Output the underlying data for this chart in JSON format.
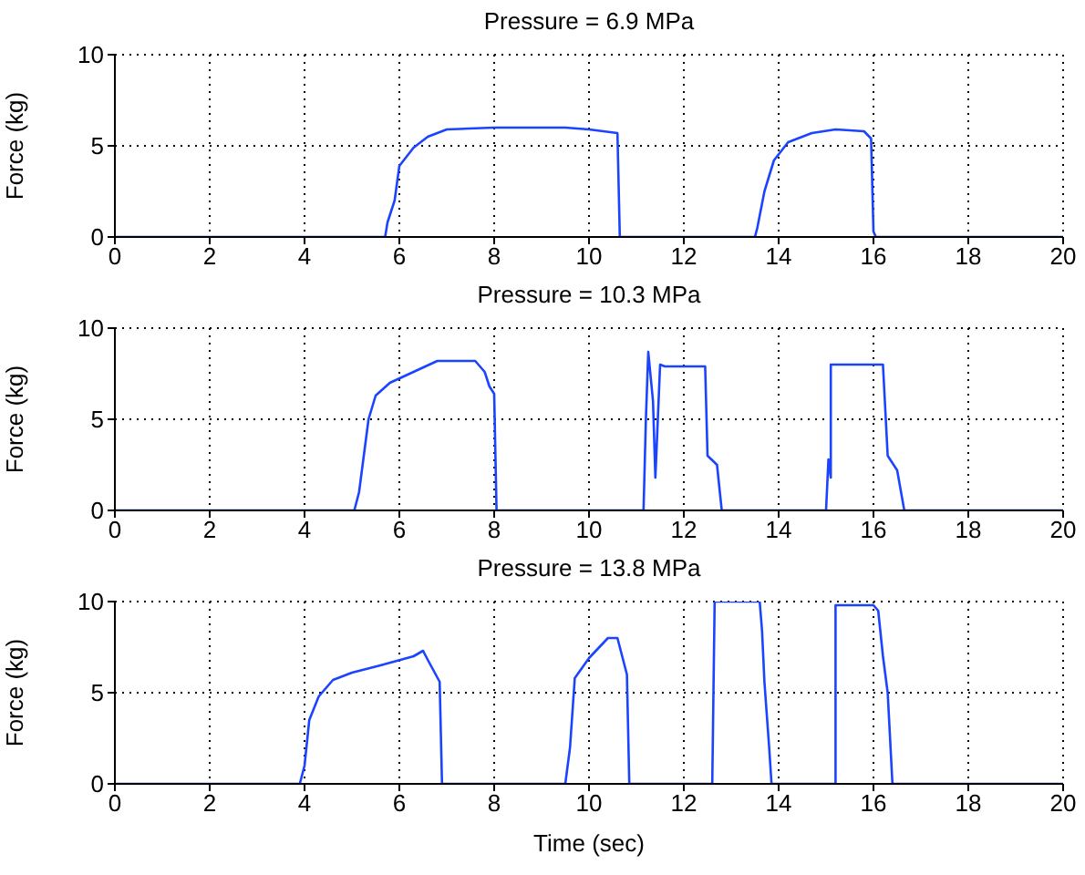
{
  "chart_data": [
    {
      "type": "line",
      "title": "Pressure = 6.9 MPa",
      "ylabel": "Force (kg)",
      "xlim": [
        0,
        20
      ],
      "xticks": [
        0,
        2,
        4,
        6,
        8,
        10,
        12,
        14,
        16,
        18,
        20
      ],
      "ylim": [
        0,
        10
      ],
      "yticks": [
        0,
        5,
        10
      ],
      "grid": true,
      "legend": false,
      "marker": "none",
      "line_style": "solid",
      "series": [
        {
          "color": "#1a44ff",
          "x": [
            0,
            5.7,
            5.75,
            5.9,
            6,
            6.3,
            6.6,
            7,
            8,
            8.5,
            9.5,
            10,
            10.6,
            10.65,
            13.5,
            13.55,
            13.7,
            13.9,
            14.2,
            14.7,
            15.2,
            15.8,
            15.95,
            16,
            16.05,
            20
          ],
          "values": [
            0,
            0,
            0.8,
            2,
            3.9,
            4.9,
            5.5,
            5.9,
            6,
            6,
            6,
            5.9,
            5.7,
            0,
            0,
            0.5,
            2.5,
            4.2,
            5.2,
            5.7,
            5.9,
            5.8,
            5.4,
            0.3,
            0,
            0
          ]
        }
      ]
    },
    {
      "type": "line",
      "title": "Pressure = 10.3 MPa",
      "ylabel": "Force (kg)",
      "xlim": [
        0,
        20
      ],
      "xticks": [
        0,
        2,
        4,
        6,
        8,
        10,
        12,
        14,
        16,
        18,
        20
      ],
      "ylim": [
        0,
        10
      ],
      "yticks": [
        0,
        5,
        10
      ],
      "grid": true,
      "legend": false,
      "marker": "none",
      "line_style": "solid",
      "series": [
        {
          "color": "#1a44ff",
          "x": [
            0,
            5.05,
            5.15,
            5.25,
            5.35,
            5.5,
            5.8,
            6.3,
            6.8,
            7.6,
            7.8,
            7.9,
            8.0,
            8.05,
            11.15,
            11.2,
            11.25,
            11.35,
            11.4,
            11.5,
            11.6,
            12.45,
            12.5,
            12.7,
            12.8,
            15.0,
            15.05,
            15.1,
            15.1,
            16.2,
            16.3,
            16.5,
            16.65,
            20
          ],
          "values": [
            0,
            0,
            1,
            3,
            5,
            6.3,
            7,
            7.6,
            8.2,
            8.2,
            7.6,
            6.8,
            6.4,
            0,
            0,
            5,
            8.7,
            6,
            1.8,
            8,
            7.9,
            7.9,
            3,
            2.5,
            0,
            0,
            2.8,
            1.8,
            8,
            8,
            3,
            2.2,
            0,
            0
          ]
        }
      ]
    },
    {
      "type": "line",
      "title": "Pressure = 13.8 MPa",
      "xlabel": "Time (sec)",
      "ylabel": "Force (kg)",
      "xlim": [
        0,
        20
      ],
      "xticks": [
        0,
        2,
        4,
        6,
        8,
        10,
        12,
        14,
        16,
        18,
        20
      ],
      "ylim": [
        0,
        10
      ],
      "yticks": [
        0,
        5,
        10
      ],
      "grid": true,
      "legend": false,
      "marker": "none",
      "line_style": "solid",
      "series": [
        {
          "color": "#1a44ff",
          "x": [
            0,
            3.9,
            4.0,
            4.1,
            4.3,
            4.6,
            5,
            5.6,
            6.3,
            6.5,
            6.6,
            6.85,
            6.9,
            9.5,
            9.6,
            9.7,
            10,
            10.4,
            10.6,
            10.7,
            10.8,
            10.85,
            12.6,
            12.65,
            13.6,
            13.65,
            13.7,
            13.8,
            13.85,
            15.2,
            15.2,
            16,
            16.1,
            16.2,
            16.3,
            16.4,
            20
          ],
          "values": [
            0,
            0,
            1,
            3.5,
            4.8,
            5.7,
            6.1,
            6.5,
            7,
            7.3,
            6.8,
            5.6,
            0,
            0,
            2,
            5.8,
            6.9,
            8,
            8,
            7,
            6,
            0,
            0,
            10,
            10,
            8.4,
            5.6,
            2,
            0,
            0,
            9.8,
            9.8,
            9.5,
            7,
            5,
            0,
            0
          ]
        }
      ]
    }
  ]
}
